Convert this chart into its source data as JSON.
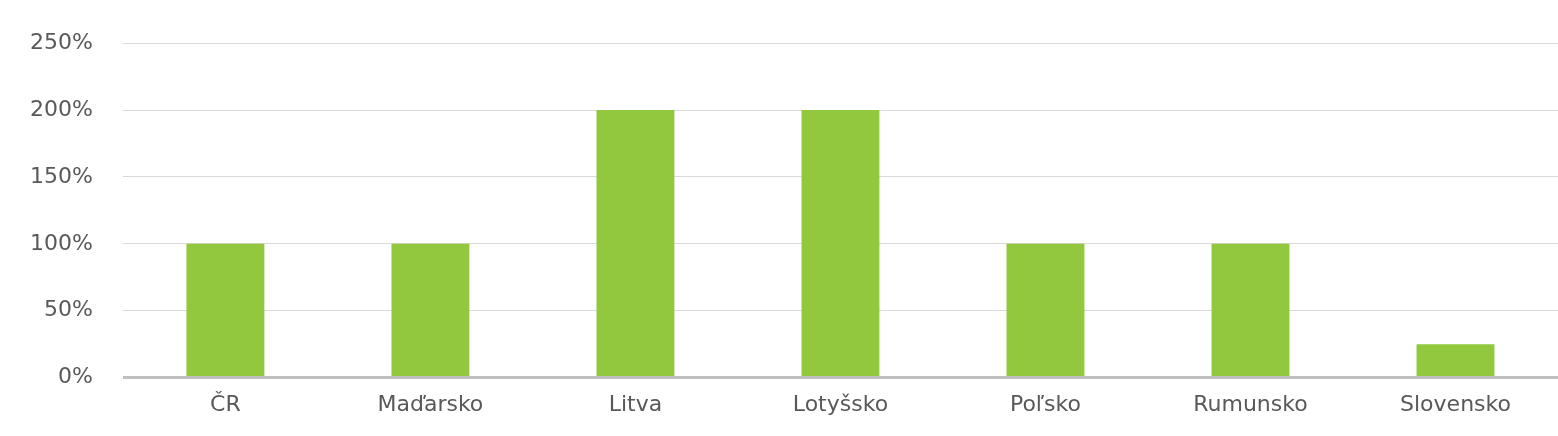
{
  "chart_data": {
    "type": "bar",
    "categories": [
      "ČR",
      "Maďarsko",
      "Litva",
      "Lotyšsko",
      "Poľsko",
      "Rumunsko",
      "Slovensko"
    ],
    "values": [
      100,
      100,
      200,
      200,
      100,
      100,
      25
    ],
    "color": "#92c83e",
    "ylim": [
      0,
      250
    ],
    "yticks": [
      {
        "value": 0,
        "label": "0%"
      },
      {
        "value": 50,
        "label": "50%"
      },
      {
        "value": 100,
        "label": "100%"
      },
      {
        "value": 150,
        "label": "150%"
      },
      {
        "value": 200,
        "label": "200%"
      },
      {
        "value": 250,
        "label": "250%"
      }
    ],
    "grid": "y"
  }
}
